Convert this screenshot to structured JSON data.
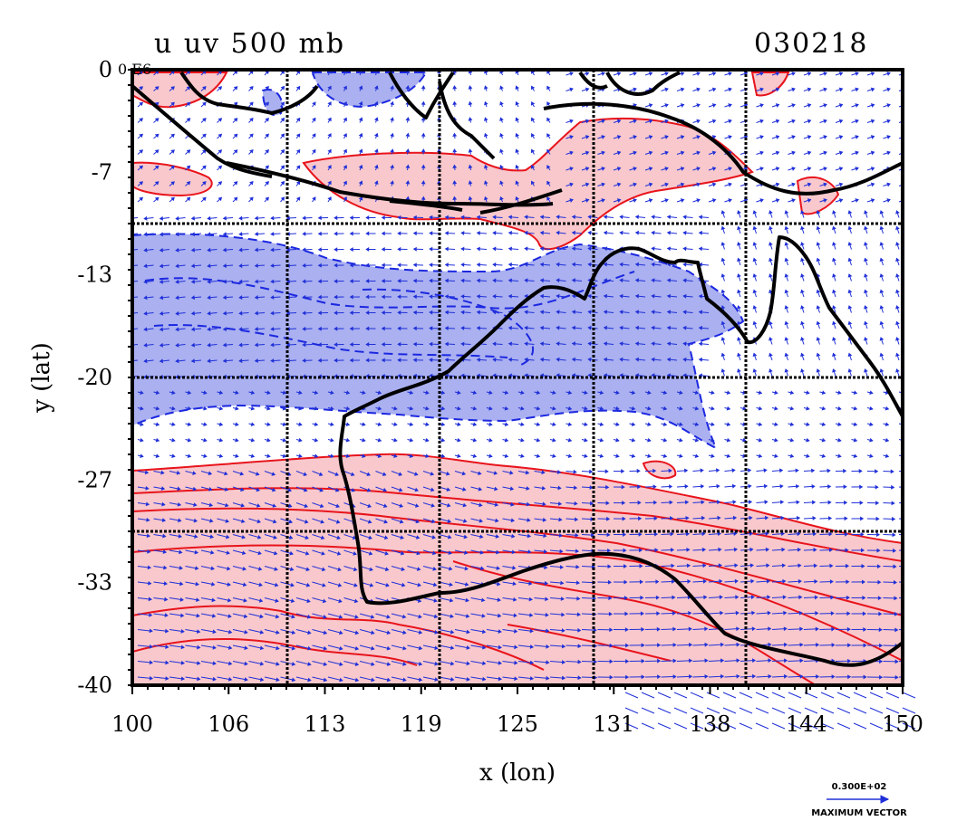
{
  "plot": {
    "title": "u uv 500 mb",
    "date_label": "030218",
    "corner_label": "0 E6",
    "xlabel": "x (lon)",
    "ylabel": "y (lat)"
  },
  "axes": {
    "x_ticks": [
      "100",
      "106",
      "113",
      "119",
      "125",
      "131",
      "138",
      "144",
      "150"
    ],
    "y_ticks": [
      "0",
      "-7",
      "-13",
      "-20",
      "-27",
      "-33",
      "-40"
    ],
    "xlim": [
      100,
      150
    ],
    "ylim": [
      -40,
      0
    ]
  },
  "legend": {
    "vector_value": "0.300E+02",
    "vector_label": "MAXIMUM VECTOR"
  },
  "colors": {
    "positive_fill": "#f8c8cc",
    "positive_line": "#e8141c",
    "negative_fill": "#aab0f0",
    "negative_line": "#1c28e0",
    "vector": "#2030d8",
    "coast": "#000000",
    "grid": "#000000"
  },
  "icons": {
    "vector_arrow": "arrow-icon"
  }
}
